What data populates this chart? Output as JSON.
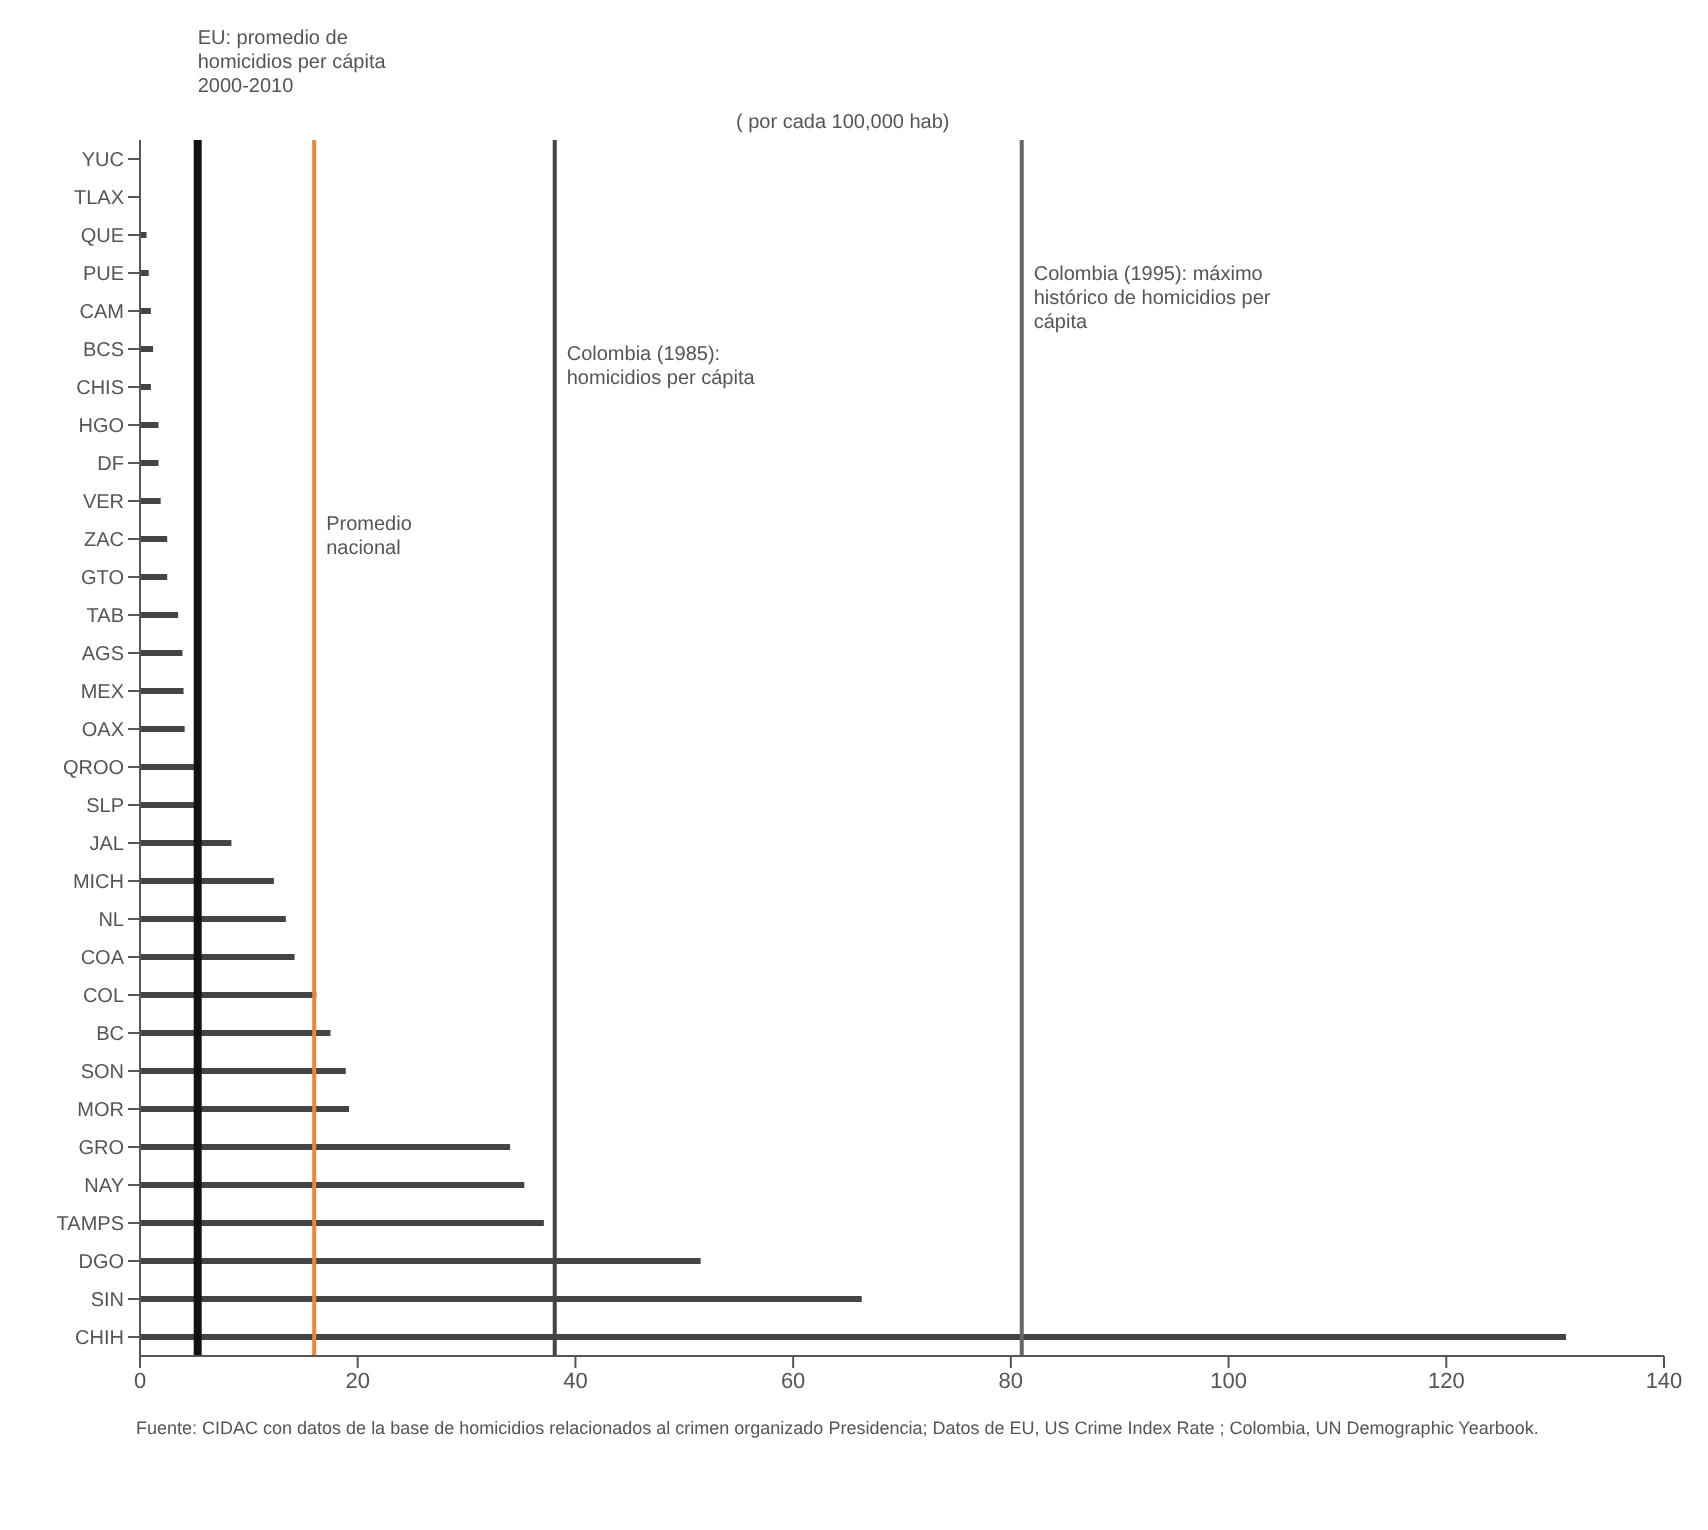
{
  "chart_data": {
    "type": "bar",
    "orientation": "horizontal",
    "subtitle": "( por cada 100,000 hab)",
    "categories": [
      "YUC",
      "TLAX",
      "QUE",
      "PUE",
      "CAM",
      "BCS",
      "CHIS",
      "HGO",
      "DF",
      "VER",
      "ZAC",
      "GTO",
      "TAB",
      "AGS",
      "MEX",
      "OAX",
      "QROO",
      "SLP",
      "JAL",
      "MICH",
      "NL",
      "COA",
      "COL",
      "BC",
      "SON",
      "MOR",
      "GRO",
      "NAY",
      "TAMPS",
      "DGO",
      "SIN",
      "CHIH"
    ],
    "values": [
      null,
      null,
      0.6,
      0.8,
      1.0,
      1.2,
      1.0,
      1.7,
      1.7,
      1.9,
      2.5,
      2.5,
      3.5,
      3.9,
      4.0,
      4.1,
      5.1,
      5.1,
      8.4,
      12.3,
      13.4,
      14.2,
      16.2,
      17.5,
      18.9,
      19.2,
      34.0,
      35.3,
      37.1,
      51.5,
      66.3,
      131
    ],
    "color": "#444444",
    "xlim": [
      0,
      140
    ],
    "xticks": [
      0,
      20,
      40,
      60,
      80,
      100,
      120,
      140
    ],
    "grid": false,
    "legend": false,
    "ref_lines": [
      {
        "axis": "x",
        "value": 5.3,
        "label": "EU: promedio de homicidios per cápita 2000-2010",
        "color": "#111111"
      },
      {
        "axis": "x",
        "value": 16.0,
        "label": "Promedio nacional",
        "color": "#e8873a"
      },
      {
        "axis": "x",
        "value": 38.1,
        "label": "Colombia (1985): homicidios per cápita",
        "color": "#444444"
      },
      {
        "axis": "x",
        "value": 81,
        "label": "Colombia (1995): máximo histórico de homicidios per cápita",
        "color": "#666666"
      }
    ],
    "annotations": [
      "Fuente: CIDAC con datos de la base de homicidios relacionados al crimen organizado Presidencia; Datos de EU, US Crime Index Rate ; Colombia, UN Demographic Yearbook."
    ]
  }
}
